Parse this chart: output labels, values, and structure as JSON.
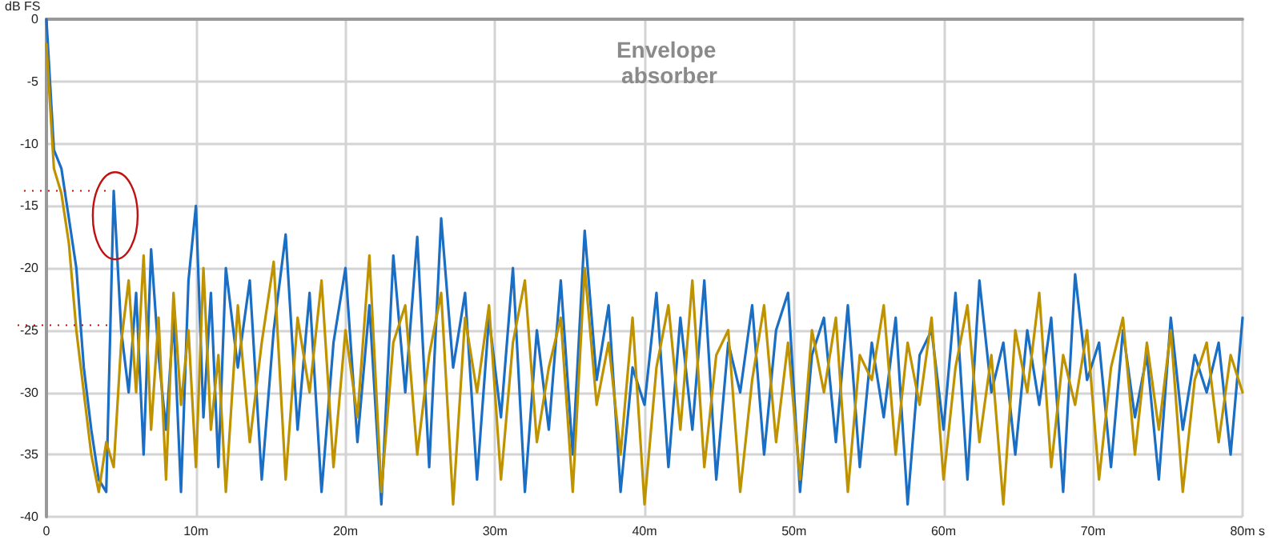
{
  "chart_data": {
    "type": "line",
    "title": "Envelope absorber",
    "xlabel": "s",
    "ylabel": "dB FS",
    "x": [
      0,
      0.5,
      1,
      1.5,
      2,
      2.5,
      3,
      3.5,
      4,
      4.5,
      5,
      5.5,
      6,
      6.5,
      7,
      7.5,
      8,
      8.5,
      9,
      9.5,
      10,
      10.5,
      11,
      11.5,
      12,
      12.8,
      13.6,
      14.4,
      15.2,
      16,
      16.8,
      17.6,
      18.4,
      19.2,
      20,
      20.8,
      21.6,
      22.4,
      23.2,
      24,
      24.8,
      25.6,
      26.4,
      27.2,
      28,
      28.8,
      29.6,
      30.4,
      31.2,
      32,
      32.8,
      33.6,
      34.4,
      35.2,
      36,
      36.8,
      37.6,
      38.4,
      39.2,
      40,
      40.8,
      41.6,
      42.4,
      43.2,
      44,
      44.8,
      45.6,
      46.4,
      47.2,
      48,
      48.8,
      49.6,
      50.4,
      51.2,
      52,
      52.8,
      53.6,
      54.4,
      55.2,
      56,
      56.8,
      57.6,
      58.4,
      59.2,
      60,
      60.8,
      61.6,
      62.4,
      63.2,
      64,
      64.8,
      65.6,
      66.4,
      67.2,
      68,
      68.8,
      69.6,
      70.4,
      71.2,
      72,
      72.8,
      73.6,
      74.4,
      75.2,
      76,
      76.8,
      77.6,
      78.4,
      79.2,
      80
    ],
    "series": [
      {
        "color": "#1a6ec4",
        "values": [
          0,
          -10.5,
          -12,
          -16,
          -20,
          -28,
          -33,
          -37,
          -38,
          -13.8,
          -25,
          -30,
          -22,
          -35,
          -18.5,
          -27,
          -33,
          -24,
          -38,
          -21,
          -15,
          -32,
          -22,
          -36,
          -20,
          -28,
          -21,
          -37,
          -25,
          -17.3,
          -33,
          -22,
          -38,
          -26,
          -20,
          -34,
          -23,
          -39,
          -19,
          -30,
          -17.5,
          -36,
          -16,
          -28,
          -22,
          -37,
          -24,
          -32,
          -20,
          -38,
          -25,
          -33,
          -21,
          -35,
          -17,
          -29,
          -23,
          -38,
          -28,
          -31,
          -22,
          -36,
          -24,
          -33,
          -21,
          -37,
          -26,
          -30,
          -23,
          -35,
          -25,
          -22,
          -38,
          -27,
          -24,
          -34,
          -23,
          -36,
          -26,
          -32,
          -24,
          -39,
          -27,
          -25,
          -33,
          -22,
          -37,
          -21,
          -30,
          -26,
          -35,
          -25,
          -31,
          -24,
          -38,
          -20.5,
          -29,
          -26,
          -36,
          -25,
          -32,
          -27,
          -37,
          -24,
          -33,
          -27,
          -30,
          -26,
          -35,
          -24
        ]
      },
      {
        "color": "#bf9300",
        "values": [
          -2,
          -12,
          -14,
          -18,
          -25,
          -30,
          -35,
          -38,
          -34,
          -36,
          -26,
          -21,
          -30,
          -19,
          -33,
          -24,
          -37,
          -22,
          -31,
          -25,
          -36,
          -20,
          -33,
          -27,
          -38,
          -23,
          -34,
          -26,
          -19.5,
          -37,
          -24,
          -30,
          -21,
          -36,
          -25,
          -32,
          -19,
          -38,
          -26,
          -23,
          -35,
          -27,
          -22,
          -39,
          -24,
          -30,
          -23,
          -37,
          -26,
          -21,
          -34,
          -28,
          -24,
          -38,
          -20,
          -31,
          -26,
          -35,
          -24,
          -39,
          -28,
          -23,
          -33,
          -21,
          -36,
          -27,
          -25,
          -38,
          -29,
          -23,
          -34,
          -26,
          -37,
          -25,
          -30,
          -24,
          -38,
          -27,
          -29,
          -23,
          -35,
          -26,
          -31,
          -24,
          -37,
          -28,
          -23,
          -34,
          -27,
          -39,
          -25,
          -30,
          -22,
          -36,
          -27,
          -31,
          -25,
          -37,
          -28,
          -24,
          -35,
          -26,
          -33,
          -25,
          -38,
          -29,
          -26,
          -34,
          -27,
          -30
        ]
      }
    ],
    "xlim": [
      0,
      80
    ],
    "xticks": [
      0,
      {
        "value": 10,
        "label": "10m"
      },
      {
        "value": 20,
        "label": "20m"
      },
      {
        "value": 30,
        "label": "30m"
      },
      {
        "value": 40,
        "label": "40m"
      },
      {
        "value": 50,
        "label": "50m"
      },
      {
        "value": 60,
        "label": "60m"
      },
      {
        "value": 70,
        "label": "70m"
      },
      {
        "value": 80,
        "label": "80m"
      }
    ],
    "ylim": [
      -40,
      0
    ],
    "yticks": [
      -40,
      -35,
      -30,
      -25,
      -20,
      -15,
      -10,
      -5,
      0
    ],
    "grid": true,
    "marker": "none",
    "line_style": "solid"
  }
}
